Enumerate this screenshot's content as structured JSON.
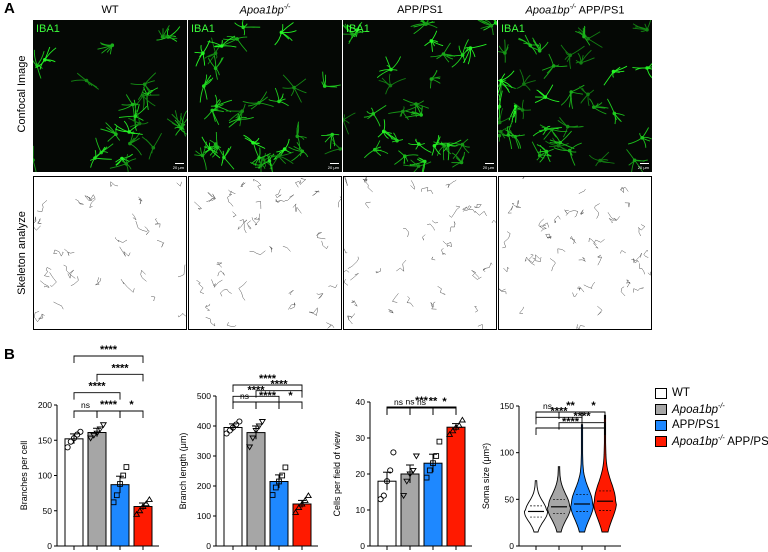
{
  "panel_a": {
    "letter": "A",
    "columns": [
      "WT",
      "Apoa1bp",
      "APP/PS1",
      "Apoa1bp APP/PS1"
    ],
    "column_labels": [
      {
        "pre": "WT",
        "sup": "",
        "post": ""
      },
      {
        "pre": "Apoa1bp",
        "sup": "-/-",
        "post": ""
      },
      {
        "pre": "APP/PS1",
        "sup": "",
        "post": ""
      },
      {
        "pre": "Apoa1bp",
        "sup": "-/-",
        "post": " APP/PS1"
      }
    ],
    "rows": [
      "Confocal Image",
      "Skeleton analyze"
    ],
    "stain": "IBA1",
    "scale_bar": "20 μm"
  },
  "panel_b": {
    "letter": "B",
    "legend": [
      {
        "pre": "WT",
        "sup": "",
        "post": "",
        "color": "#ffffff"
      },
      {
        "pre": "Apoa1bp",
        "sup": "-/-",
        "post": "",
        "color": "#a6a6a6"
      },
      {
        "pre": "APP/PS1",
        "sup": "",
        "post": "",
        "color": "#1e88ff"
      },
      {
        "pre": "Apoa1bp",
        "sup": "-/-",
        "post": " APP/PS1",
        "color": "#ff1a00"
      }
    ],
    "colors": [
      "#ffffff",
      "#a6a6a6",
      "#1e88ff",
      "#ff1a00"
    ]
  },
  "chart_data": [
    {
      "type": "bar",
      "ylabel": "Branches per cell",
      "ylim": [
        0,
        200
      ],
      "yticks": [
        0,
        50,
        100,
        150,
        200
      ],
      "categories": [
        "WT",
        "Apoa1bp-/-",
        "APP/PS1",
        "Apoa1bp-/- APP/PS1"
      ],
      "values": [
        152,
        161,
        87,
        56
      ],
      "errors": [
        7,
        6,
        12,
        5
      ],
      "points": [
        [
          140,
          148,
          153,
          158,
          162
        ],
        [
          153,
          157,
          160,
          166,
          172
        ],
        [
          62,
          72,
          88,
          100,
          112
        ],
        [
          45,
          50,
          56,
          60,
          66
        ]
      ],
      "comparisons": [
        {
          "from": 0,
          "to": 3,
          "label": "****",
          "level": 3
        },
        {
          "from": 1,
          "to": 3,
          "label": "****",
          "level": 2
        },
        {
          "from": 0,
          "to": 2,
          "label": "****",
          "level": 1
        },
        {
          "from": 0,
          "to": 1,
          "label": "ns",
          "level": 0
        },
        {
          "from": 1,
          "to": 2,
          "label": "****",
          "level": 0
        },
        {
          "from": 2,
          "to": 3,
          "label": "*",
          "level": 0
        }
      ]
    },
    {
      "type": "bar",
      "ylabel": "Branch length (μm)",
      "ylim": [
        0,
        500
      ],
      "yticks": [
        0,
        100,
        200,
        300,
        400,
        500
      ],
      "categories": [
        "WT",
        "Apoa1bp-/-",
        "APP/PS1",
        "Apoa1bp-/- APP/PS1"
      ],
      "values": [
        395,
        378,
        215,
        140
      ],
      "errors": [
        12,
        22,
        22,
        12
      ],
      "points": [
        [
          375,
          385,
          395,
          405,
          415
        ],
        [
          330,
          360,
          385,
          400,
          415
        ],
        [
          170,
          195,
          215,
          235,
          262
        ],
        [
          112,
          128,
          140,
          152,
          168
        ]
      ],
      "comparisons": [
        {
          "from": 0,
          "to": 3,
          "label": "****",
          "level": 3
        },
        {
          "from": 1,
          "to": 3,
          "label": "****",
          "level": 2
        },
        {
          "from": 0,
          "to": 2,
          "label": "****",
          "level": 1
        },
        {
          "from": 0,
          "to": 1,
          "label": "ns",
          "level": 0
        },
        {
          "from": 1,
          "to": 2,
          "label": "****",
          "level": 0
        },
        {
          "from": 2,
          "to": 3,
          "label": "*",
          "level": 0
        }
      ]
    },
    {
      "type": "bar",
      "ylabel": "Cells per field of view",
      "ylim": [
        0,
        40
      ],
      "yticks": [
        0,
        10,
        20,
        30,
        40
      ],
      "categories": [
        "WT",
        "Apoa1bp-/-",
        "APP/PS1",
        "Apoa1bp-/- APP/PS1"
      ],
      "values": [
        18,
        20,
        23,
        33
      ],
      "errors": [
        2.5,
        2.5,
        2.5,
        1
      ],
      "points": [
        [
          13,
          14,
          18,
          21,
          26
        ],
        [
          14,
          18,
          20,
          21,
          25
        ],
        [
          19,
          21,
          23,
          25,
          29
        ],
        [
          31,
          32,
          33,
          33.5,
          35
        ]
      ],
      "comparisons": [
        {
          "from": 0,
          "to": 3,
          "label": "***",
          "level": 3
        },
        {
          "from": 1,
          "to": 3,
          "label": "**",
          "level": 2
        },
        {
          "from": 0,
          "to": 2,
          "label": "ns",
          "level": 1
        },
        {
          "from": 0,
          "to": 1,
          "label": "ns",
          "level": 0
        },
        {
          "from": 1,
          "to": 2,
          "label": "ns",
          "level": 0
        },
        {
          "from": 2,
          "to": 3,
          "label": "*",
          "level": 0
        }
      ]
    },
    {
      "type": "violin",
      "ylabel": "Soma size (μm²)",
      "ylim": [
        0,
        150
      ],
      "yticks": [
        0,
        50,
        100,
        150
      ],
      "categories": [
        "WT",
        "Apoa1bp-/-",
        "APP/PS1",
        "Apoa1bp-/- APP/PS1"
      ],
      "medians": [
        37,
        42,
        45,
        48
      ],
      "quartiles": [
        [
          31,
          43
        ],
        [
          35,
          50
        ],
        [
          37,
          55
        ],
        [
          38,
          59
        ]
      ],
      "ranges": [
        [
          15,
          70
        ],
        [
          15,
          85
        ],
        [
          15,
          130
        ],
        [
          15,
          140
        ]
      ],
      "comparisons": [
        {
          "from": 0,
          "to": 3,
          "label": "****",
          "level": 3
        },
        {
          "from": 1,
          "to": 3,
          "label": "****",
          "level": 2
        },
        {
          "from": 0,
          "to": 2,
          "label": "****",
          "level": 1
        },
        {
          "from": 0,
          "to": 1,
          "label": "ns",
          "level": 0
        },
        {
          "from": 1,
          "to": 2,
          "label": "**",
          "level": 0
        },
        {
          "from": 2,
          "to": 3,
          "label": "*",
          "level": 0
        }
      ]
    }
  ]
}
